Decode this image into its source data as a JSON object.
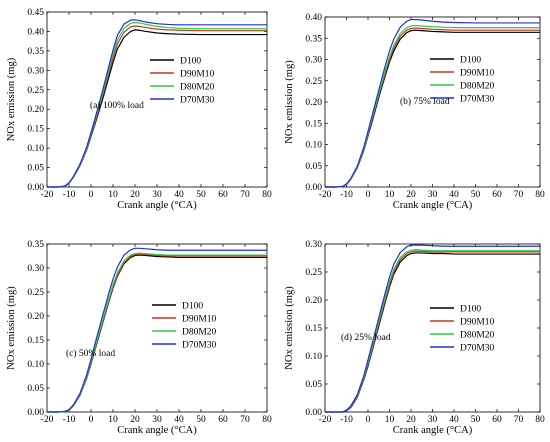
{
  "figure": {
    "series_colors": {
      "D100": "#000000",
      "D90M10": "#c0392b",
      "D80M20": "#2ecc40",
      "D70M30": "#1f2fe0"
    }
  },
  "chart_data": [
    {
      "type": "line",
      "title": "(a) 100% load",
      "xlabel": "Crank angle (°CA)",
      "ylabel": "NOx emission (mg)",
      "xlim": [
        -20,
        80
      ],
      "ylim": [
        0,
        0.45
      ],
      "x_ticks": [
        "-20",
        "-10",
        "0",
        "10",
        "20",
        "30",
        "40",
        "50",
        "60",
        "70",
        "80"
      ],
      "y_ticks": [
        "0.00",
        "0.05",
        "0.10",
        "0.15",
        "0.20",
        "0.25",
        "0.30",
        "0.35",
        "0.40",
        "0.45"
      ],
      "legend_position": "right",
      "grid": false,
      "x": [
        -20,
        -15,
        -12,
        -10,
        -8,
        -5,
        -2,
        0,
        2,
        5,
        8,
        10,
        12,
        15,
        18,
        20,
        22,
        25,
        30,
        35,
        40,
        50,
        60,
        70,
        80
      ],
      "series": [
        {
          "name": "D100",
          "values": [
            0,
            0,
            0.002,
            0.01,
            0.025,
            0.055,
            0.095,
            0.13,
            0.165,
            0.22,
            0.28,
            0.32,
            0.355,
            0.385,
            0.4,
            0.404,
            0.403,
            0.4,
            0.396,
            0.394,
            0.393,
            0.392,
            0.392,
            0.392,
            0.392
          ]
        },
        {
          "name": "D90M10",
          "values": [
            0,
            0,
            0.002,
            0.01,
            0.026,
            0.056,
            0.097,
            0.133,
            0.17,
            0.228,
            0.29,
            0.332,
            0.368,
            0.398,
            0.412,
            0.414,
            0.413,
            0.41,
            0.406,
            0.404,
            0.403,
            0.402,
            0.402,
            0.402,
            0.402
          ]
        },
        {
          "name": "D80M20",
          "values": [
            0,
            0,
            0.002,
            0.01,
            0.026,
            0.057,
            0.099,
            0.136,
            0.174,
            0.234,
            0.298,
            0.341,
            0.378,
            0.408,
            0.421,
            0.423,
            0.422,
            0.418,
            0.413,
            0.41,
            0.408,
            0.407,
            0.407,
            0.407,
            0.407
          ]
        },
        {
          "name": "D70M30",
          "values": [
            0,
            0,
            0.002,
            0.011,
            0.027,
            0.059,
            0.102,
            0.14,
            0.18,
            0.242,
            0.308,
            0.352,
            0.39,
            0.419,
            0.429,
            0.43,
            0.428,
            0.424,
            0.42,
            0.418,
            0.417,
            0.417,
            0.417,
            0.417,
            0.417
          ]
        }
      ]
    },
    {
      "type": "line",
      "title": "(b) 75% load",
      "xlabel": "Crank angle (°CA)",
      "ylabel": "NOx emission (mg)",
      "xlim": [
        -20,
        80
      ],
      "ylim": [
        0,
        0.4
      ],
      "x_ticks": [
        "-20",
        "-10",
        "0",
        "10",
        "20",
        "30",
        "40",
        "50",
        "60",
        "70",
        "80"
      ],
      "y_ticks": [
        "0.00",
        "0.05",
        "0.10",
        "0.15",
        "0.20",
        "0.25",
        "0.30",
        "0.35",
        "0.40"
      ],
      "legend_position": "right",
      "grid": false,
      "x": [
        -20,
        -15,
        -12,
        -10,
        -8,
        -5,
        -2,
        0,
        2,
        5,
        8,
        10,
        12,
        15,
        18,
        20,
        22,
        25,
        30,
        35,
        40,
        50,
        60,
        70,
        80
      ],
      "series": [
        {
          "name": "D100",
          "values": [
            0,
            0,
            0.001,
            0.006,
            0.018,
            0.045,
            0.085,
            0.12,
            0.155,
            0.21,
            0.262,
            0.294,
            0.32,
            0.348,
            0.363,
            0.368,
            0.369,
            0.368,
            0.366,
            0.365,
            0.364,
            0.364,
            0.364,
            0.364,
            0.364
          ]
        },
        {
          "name": "D90M10",
          "values": [
            0,
            0,
            0.001,
            0.006,
            0.018,
            0.046,
            0.087,
            0.123,
            0.16,
            0.215,
            0.268,
            0.3,
            0.327,
            0.355,
            0.369,
            0.373,
            0.374,
            0.373,
            0.371,
            0.37,
            0.369,
            0.369,
            0.369,
            0.369,
            0.369
          ]
        },
        {
          "name": "D80M20",
          "values": [
            0,
            0,
            0.001,
            0.007,
            0.019,
            0.047,
            0.089,
            0.126,
            0.163,
            0.219,
            0.273,
            0.306,
            0.333,
            0.361,
            0.375,
            0.379,
            0.38,
            0.379,
            0.377,
            0.376,
            0.375,
            0.375,
            0.375,
            0.375,
            0.375
          ]
        },
        {
          "name": "D70M30",
          "values": [
            0,
            0,
            0.001,
            0.007,
            0.02,
            0.049,
            0.093,
            0.131,
            0.17,
            0.228,
            0.285,
            0.32,
            0.348,
            0.376,
            0.39,
            0.394,
            0.394,
            0.393,
            0.39,
            0.388,
            0.387,
            0.386,
            0.386,
            0.386,
            0.386
          ]
        }
      ]
    },
    {
      "type": "line",
      "title": "(c) 50% load",
      "xlabel": "Crank angle (°CA)",
      "ylabel": "NOx emission (mg)",
      "xlim": [
        -20,
        80
      ],
      "ylim": [
        0,
        0.35
      ],
      "x_ticks": [
        "-20",
        "-10",
        "0",
        "10",
        "20",
        "30",
        "40",
        "50",
        "60",
        "70",
        "80"
      ],
      "y_ticks": [
        "0.00",
        "0.05",
        "0.10",
        "0.15",
        "0.20",
        "0.25",
        "0.30",
        "0.35"
      ],
      "legend_position": "right",
      "grid": false,
      "x": [
        -20,
        -15,
        -12,
        -10,
        -8,
        -5,
        -2,
        0,
        2,
        5,
        8,
        10,
        12,
        15,
        18,
        20,
        22,
        25,
        30,
        35,
        40,
        50,
        60,
        70,
        80
      ],
      "series": [
        {
          "name": "D100",
          "values": [
            0,
            0,
            0.001,
            0.004,
            0.013,
            0.035,
            0.07,
            0.1,
            0.132,
            0.18,
            0.228,
            0.258,
            0.283,
            0.309,
            0.322,
            0.326,
            0.327,
            0.326,
            0.324,
            0.323,
            0.322,
            0.322,
            0.322,
            0.322,
            0.322
          ]
        },
        {
          "name": "D90M10",
          "values": [
            0,
            0,
            0.001,
            0.004,
            0.013,
            0.036,
            0.071,
            0.102,
            0.134,
            0.182,
            0.23,
            0.26,
            0.285,
            0.311,
            0.324,
            0.328,
            0.329,
            0.328,
            0.326,
            0.325,
            0.325,
            0.325,
            0.325,
            0.325,
            0.325
          ]
        },
        {
          "name": "D80M20",
          "values": [
            0,
            0,
            0.001,
            0.004,
            0.014,
            0.037,
            0.073,
            0.104,
            0.137,
            0.186,
            0.235,
            0.265,
            0.29,
            0.315,
            0.327,
            0.33,
            0.331,
            0.33,
            0.328,
            0.327,
            0.327,
            0.327,
            0.327,
            0.327,
            0.327
          ]
        },
        {
          "name": "D70M30",
          "values": [
            0,
            0,
            0.001,
            0.005,
            0.015,
            0.039,
            0.077,
            0.11,
            0.145,
            0.196,
            0.246,
            0.277,
            0.302,
            0.327,
            0.338,
            0.341,
            0.341,
            0.34,
            0.338,
            0.337,
            0.337,
            0.337,
            0.337,
            0.337,
            0.337
          ]
        }
      ]
    },
    {
      "type": "line",
      "title": "(d) 25% load",
      "xlabel": "Crank angle (°CA)",
      "ylabel": "NOx emission (mg)",
      "xlim": [
        -20,
        80
      ],
      "ylim": [
        0,
        0.3
      ],
      "x_ticks": [
        "-20",
        "-10",
        "0",
        "10",
        "20",
        "30",
        "40",
        "50",
        "60",
        "70",
        "80"
      ],
      "y_ticks": [
        "0.00",
        "0.05",
        "0.10",
        "0.15",
        "0.20",
        "0.25",
        "0.30"
      ],
      "legend_position": "right",
      "grid": false,
      "x": [
        -20,
        -15,
        -12,
        -10,
        -8,
        -5,
        -2,
        0,
        2,
        5,
        8,
        10,
        12,
        15,
        18,
        20,
        22,
        25,
        30,
        35,
        40,
        50,
        60,
        70,
        80
      ],
      "series": [
        {
          "name": "D100",
          "values": [
            0,
            0,
            0,
            0.002,
            0.008,
            0.026,
            0.057,
            0.082,
            0.11,
            0.153,
            0.196,
            0.223,
            0.246,
            0.268,
            0.279,
            0.283,
            0.284,
            0.284,
            0.283,
            0.283,
            0.282,
            0.282,
            0.282,
            0.282,
            0.282
          ]
        },
        {
          "name": "D90M10",
          "values": [
            0,
            0,
            0,
            0.002,
            0.009,
            0.027,
            0.059,
            0.085,
            0.113,
            0.157,
            0.2,
            0.227,
            0.25,
            0.272,
            0.283,
            0.286,
            0.287,
            0.287,
            0.286,
            0.286,
            0.286,
            0.286,
            0.286,
            0.286,
            0.286
          ]
        },
        {
          "name": "D80M20",
          "values": [
            0,
            0,
            0,
            0.003,
            0.01,
            0.029,
            0.061,
            0.088,
            0.117,
            0.161,
            0.205,
            0.232,
            0.255,
            0.276,
            0.286,
            0.289,
            0.29,
            0.289,
            0.288,
            0.288,
            0.288,
            0.288,
            0.288,
            0.288,
            0.288
          ]
        },
        {
          "name": "D70M30",
          "values": [
            0,
            0,
            0,
            0.003,
            0.011,
            0.031,
            0.064,
            0.093,
            0.123,
            0.168,
            0.213,
            0.241,
            0.264,
            0.285,
            0.295,
            0.298,
            0.298,
            0.298,
            0.297,
            0.296,
            0.296,
            0.296,
            0.296,
            0.296,
            0.296
          ]
        }
      ]
    }
  ]
}
